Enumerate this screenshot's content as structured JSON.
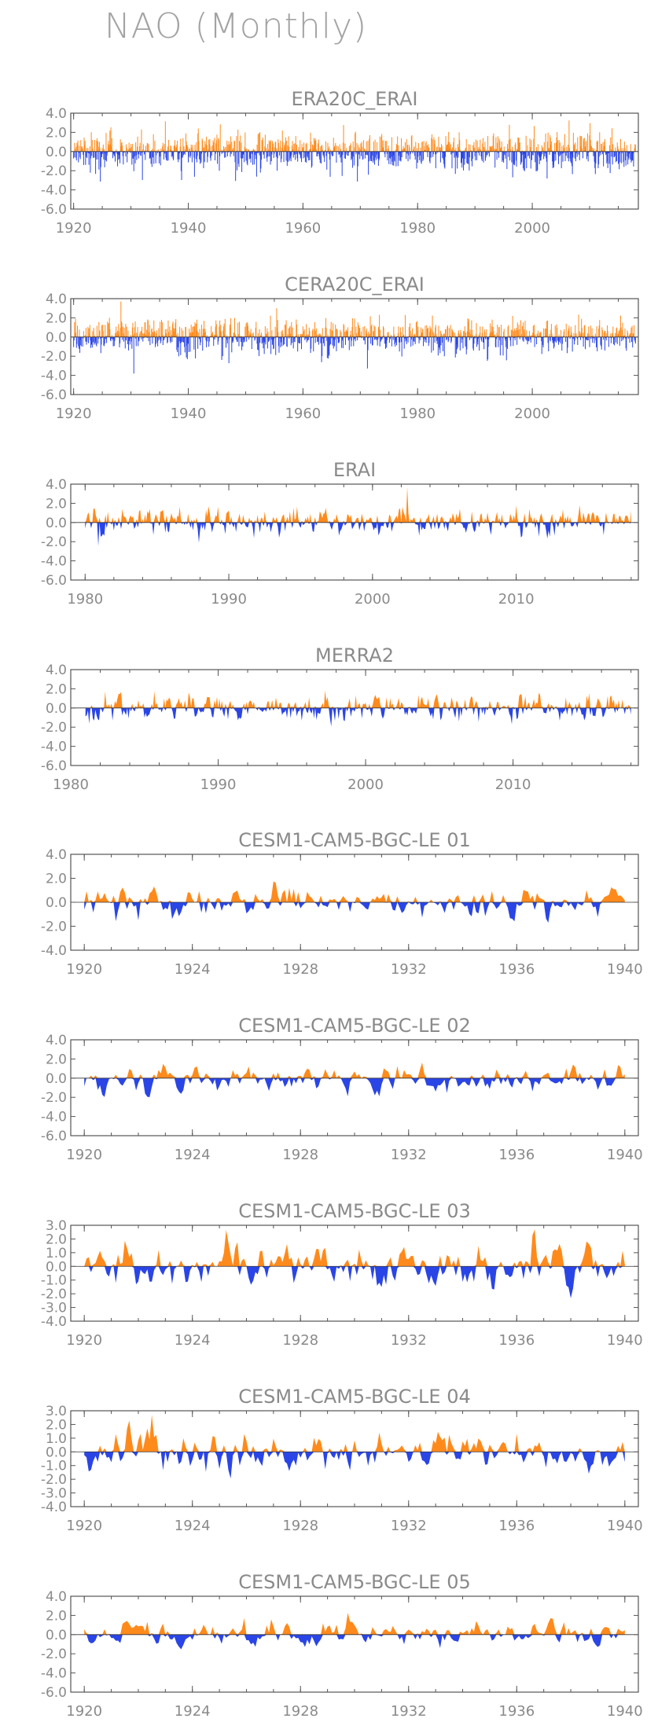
{
  "page": {
    "title": "NAO (Monthly)"
  },
  "colors": {
    "positive": "#ff8a1c",
    "negative": "#2a45e6",
    "axis": "#555555",
    "text": "#8a8a8a"
  },
  "chart_data": [
    {
      "type": "area",
      "title": "ERA20C_ERAI",
      "x_range": [
        1919.5,
        2018.5
      ],
      "ylim": [
        -6,
        4
      ],
      "yticks": [
        4.0,
        2.0,
        0.0,
        -2.0,
        -4.0,
        -6.0
      ],
      "ytick_labels": [
        "4.0",
        "2.0",
        "0.0",
        "-2.0",
        "-4.0",
        "-6.0"
      ],
      "xticks": [
        1920,
        1940,
        1960,
        1980,
        2000
      ],
      "xtick_labels": [
        "1920",
        "1940",
        "1960",
        "1980",
        "2000"
      ],
      "minor_x_step": 5,
      "xlabel": "",
      "ylabel": "",
      "bar_style": "thin",
      "series": [
        {
          "seed": 11,
          "amp": 1.0,
          "smooth": 0.1
        }
      ]
    },
    {
      "type": "area",
      "title": "CERA20C_ERAI",
      "x_range": [
        1919.5,
        2018.5
      ],
      "ylim": [
        -6,
        4
      ],
      "yticks": [
        4.0,
        2.0,
        0.0,
        -2.0,
        -4.0,
        -6.0
      ],
      "ytick_labels": [
        "4.0",
        "2.0",
        "0.0",
        "-2.0",
        "-4.0",
        "-6.0"
      ],
      "xticks": [
        1920,
        1940,
        1960,
        1980,
        2000
      ],
      "xtick_labels": [
        "1920",
        "1940",
        "1960",
        "1980",
        "2000"
      ],
      "minor_x_step": 5,
      "xlabel": "",
      "ylabel": "",
      "bar_style": "thin",
      "series": [
        {
          "seed": 12,
          "amp": 1.0,
          "smooth": 0.1
        }
      ]
    },
    {
      "type": "area",
      "title": "ERAI",
      "x_range": [
        1979,
        2018.5
      ],
      "ylim": [
        -6,
        4
      ],
      "yticks": [
        4.0,
        2.0,
        0.0,
        -2.0,
        -4.0,
        -6.0
      ],
      "ytick_labels": [
        "4.0",
        "2.0",
        "0.0",
        "-2.0",
        "-4.0",
        "-6.0"
      ],
      "xticks": [
        1980,
        1990,
        2000,
        2010
      ],
      "xtick_labels": [
        "1980",
        "1990",
        "2000",
        "2010"
      ],
      "minor_x_step": 2,
      "xlabel": "",
      "ylabel": "",
      "bar_style": "area",
      "series": [
        {
          "seed": 21,
          "amp": 1.05,
          "smooth": 0.35
        }
      ]
    },
    {
      "type": "area",
      "title": "MERRA2",
      "x_range": [
        1980,
        2018.5
      ],
      "ylim": [
        -6,
        4
      ],
      "yticks": [
        4.0,
        2.0,
        0.0,
        -2.0,
        -4.0,
        -6.0
      ],
      "ytick_labels": [
        "4.0",
        "2.0",
        "0.0",
        "-2.0",
        "-4.0",
        "-6.0"
      ],
      "xticks": [
        1980,
        1990,
        2000,
        2010
      ],
      "xtick_labels": [
        "1980",
        "1990",
        "2000",
        "2010"
      ],
      "minor_x_step": 2,
      "xlabel": "",
      "ylabel": "",
      "bar_style": "area",
      "series": [
        {
          "seed": 22,
          "amp": 1.05,
          "smooth": 0.35
        }
      ]
    },
    {
      "type": "area",
      "title": "CESM1-CAM5-BGC-LE 01",
      "x_range": [
        1919.5,
        1940.5
      ],
      "ylim": [
        -4,
        4
      ],
      "yticks": [
        4.0,
        2.0,
        0.0,
        -2.0,
        -4.0
      ],
      "ytick_labels": [
        "4.0",
        "2.0",
        "0.0",
        "-2.0",
        "-4.0"
      ],
      "xticks": [
        1920,
        1924,
        1928,
        1932,
        1936,
        1940
      ],
      "xtick_labels": [
        "1920",
        "1924",
        "1928",
        "1932",
        "1936",
        "1940"
      ],
      "minor_x_step": 1,
      "xlabel": "",
      "ylabel": "",
      "bar_style": "area",
      "series": [
        {
          "seed": 31,
          "amp": 1.05,
          "smooth": 0.45
        }
      ]
    },
    {
      "type": "area",
      "title": "CESM1-CAM5-BGC-LE 02",
      "x_range": [
        1919.5,
        1940.5
      ],
      "ylim": [
        -6,
        4
      ],
      "yticks": [
        4.0,
        2.0,
        0.0,
        -2.0,
        -4.0,
        -6.0
      ],
      "ytick_labels": [
        "4.0",
        "2.0",
        "0.0",
        "-2.0",
        "-4.0",
        "-6.0"
      ],
      "xticks": [
        1920,
        1924,
        1928,
        1932,
        1936,
        1940
      ],
      "xtick_labels": [
        "1920",
        "1924",
        "1928",
        "1932",
        "1936",
        "1940"
      ],
      "minor_x_step": 1,
      "xlabel": "",
      "ylabel": "",
      "bar_style": "area",
      "series": [
        {
          "seed": 32,
          "amp": 1.1,
          "smooth": 0.45
        }
      ]
    },
    {
      "type": "area",
      "title": "CESM1-CAM5-BGC-LE 03",
      "x_range": [
        1919.5,
        1940.5
      ],
      "ylim": [
        -4,
        3
      ],
      "yticks": [
        3.0,
        2.0,
        1.0,
        0.0,
        -1.0,
        -2.0,
        -3.0,
        -4.0
      ],
      "ytick_labels": [
        "3.0",
        "2.0",
        "1.0",
        "0.0",
        "-1.0",
        "-2.0",
        "-3.0",
        "-4.0"
      ],
      "xticks": [
        1920,
        1924,
        1928,
        1932,
        1936,
        1940
      ],
      "xtick_labels": [
        "1920",
        "1924",
        "1928",
        "1932",
        "1936",
        "1940"
      ],
      "minor_x_step": 1,
      "xlabel": "",
      "ylabel": "",
      "bar_style": "area",
      "series": [
        {
          "seed": 33,
          "amp": 1.1,
          "smooth": 0.45
        }
      ]
    },
    {
      "type": "area",
      "title": "CESM1-CAM5-BGC-LE 04",
      "x_range": [
        1919.5,
        1940.5
      ],
      "ylim": [
        -4,
        3
      ],
      "yticks": [
        3.0,
        2.0,
        1.0,
        0.0,
        -1.0,
        -2.0,
        -3.0,
        -4.0
      ],
      "ytick_labels": [
        "3.0",
        "2.0",
        "1.0",
        "0.0",
        "-1.0",
        "-2.0",
        "-3.0",
        "-4.0"
      ],
      "xticks": [
        1920,
        1924,
        1928,
        1932,
        1936,
        1940
      ],
      "xtick_labels": [
        "1920",
        "1924",
        "1928",
        "1932",
        "1936",
        "1940"
      ],
      "minor_x_step": 1,
      "xlabel": "",
      "ylabel": "",
      "bar_style": "area",
      "series": [
        {
          "seed": 34,
          "amp": 1.1,
          "smooth": 0.45
        }
      ]
    },
    {
      "type": "area",
      "title": "CESM1-CAM5-BGC-LE 05",
      "x_range": [
        1919.5,
        1940.5
      ],
      "ylim": [
        -6,
        4
      ],
      "yticks": [
        4.0,
        2.0,
        0.0,
        -2.0,
        -4.0,
        -6.0
      ],
      "ytick_labels": [
        "4.0",
        "2.0",
        "0.0",
        "-2.0",
        "-4.0",
        "-6.0"
      ],
      "xticks": [
        1920,
        1924,
        1928,
        1932,
        1936,
        1940
      ],
      "xtick_labels": [
        "1920",
        "1924",
        "1928",
        "1932",
        "1936",
        "1940"
      ],
      "minor_x_step": 1,
      "xlabel": "",
      "ylabel": "",
      "bar_style": "area",
      "series": [
        {
          "seed": 35,
          "amp": 1.05,
          "smooth": 0.45
        }
      ]
    }
  ]
}
